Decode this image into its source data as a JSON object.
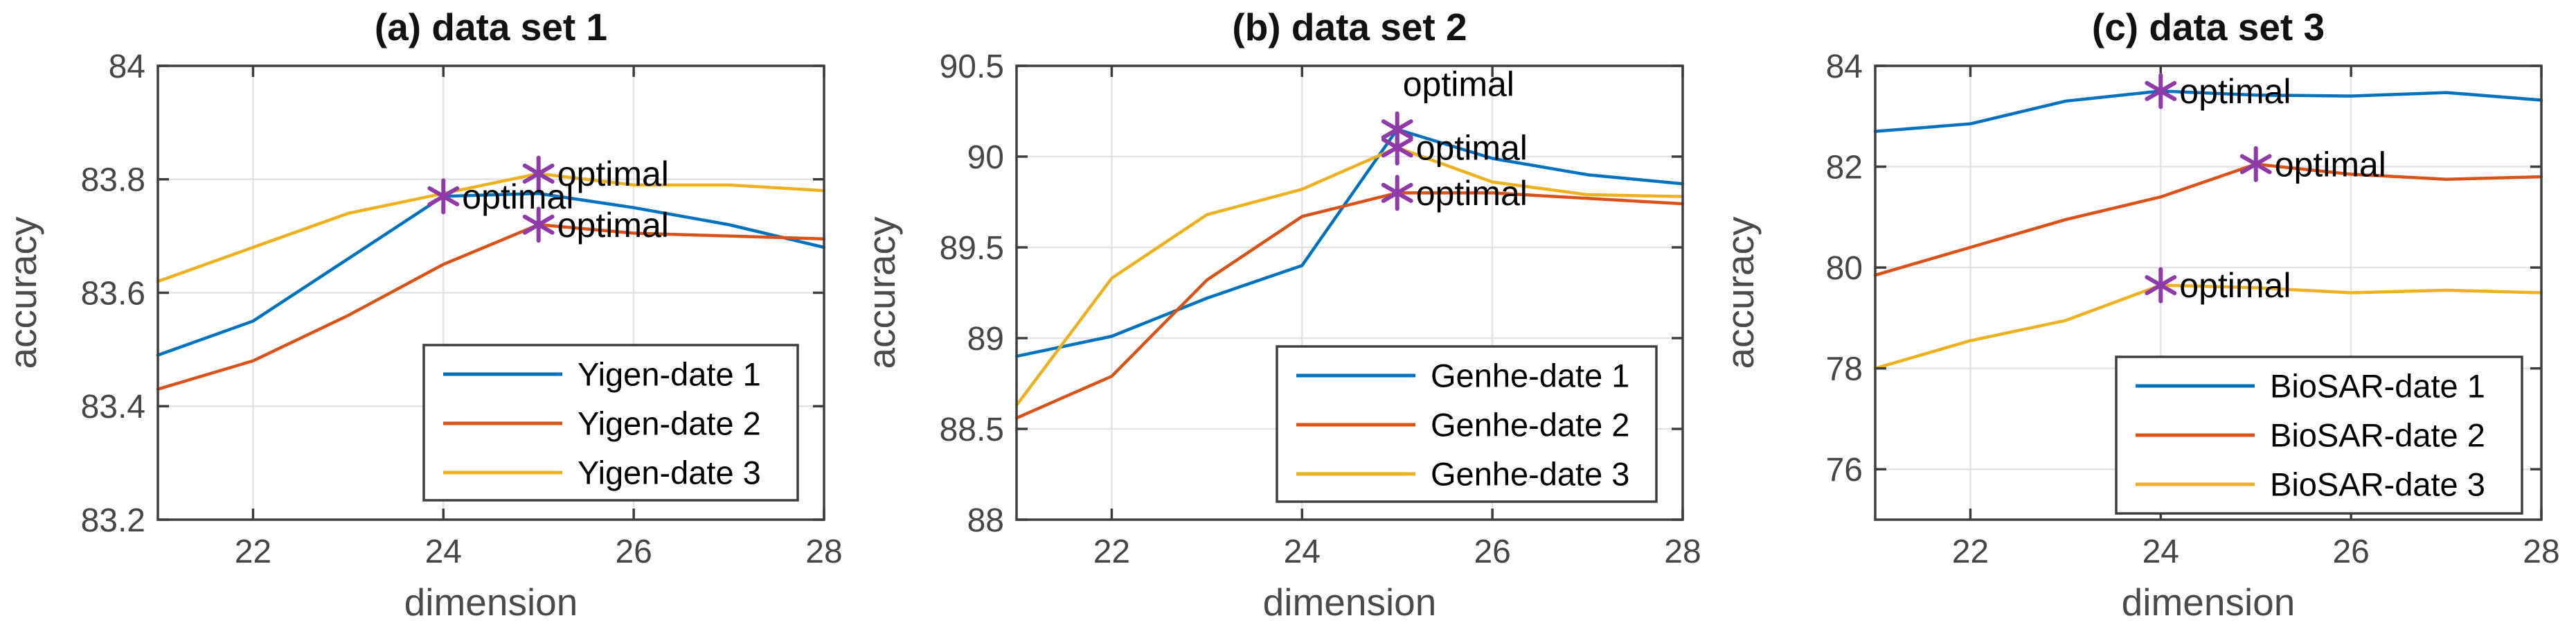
{
  "figure": {
    "background": "#ffffff",
    "optimal_marker_color": "#8E3BA8",
    "grid_color": "#e3e3e3",
    "axis_color": "#3d3d3d",
    "tick_text_color": "#464646"
  },
  "chart_data": [
    {
      "type": "line",
      "title": "(a) data set 1",
      "xlabel": "dimension",
      "ylabel": "accuracy",
      "x": [
        21,
        22,
        23,
        24,
        25,
        26,
        27,
        28
      ],
      "xlim": [
        21,
        28
      ],
      "ylim": [
        83.2,
        84
      ],
      "xticks": [
        22,
        24,
        26,
        28
      ],
      "xtick_labels": [
        "22",
        "24",
        "26",
        "28"
      ],
      "yticks": [
        83.2,
        83.4,
        83.6,
        83.8,
        84
      ],
      "ytick_labels": [
        "83.2",
        "83.4",
        "83.6",
        "83.8",
        "84"
      ],
      "grid": true,
      "legend_position": "lower right",
      "series": [
        {
          "name": "Yigen-date 1",
          "color": "#0072BD",
          "values": [
            83.49,
            83.55,
            83.66,
            83.77,
            83.775,
            83.75,
            83.72,
            83.68
          ]
        },
        {
          "name": "Yigen-date 2",
          "color": "#D95319",
          "values": [
            83.43,
            83.48,
            83.56,
            83.65,
            83.72,
            83.705,
            83.7,
            83.695
          ]
        },
        {
          "name": "Yigen-date 3",
          "color": "#EDB120",
          "values": [
            83.62,
            83.68,
            83.74,
            83.775,
            83.81,
            83.79,
            83.79,
            83.78
          ]
        }
      ],
      "optimal_points": [
        {
          "series": "Yigen-date 3",
          "x": 25,
          "y": 83.81,
          "label": "optimal",
          "label_side": "right"
        },
        {
          "series": "Yigen-date 1",
          "x": 24,
          "y": 83.77,
          "label": "optimal",
          "label_side": "right"
        },
        {
          "series": "Yigen-date 2",
          "x": 25,
          "y": 83.72,
          "label": "optimal",
          "label_side": "right"
        }
      ]
    },
    {
      "type": "line",
      "title": "(b) data set 2",
      "xlabel": "dimension",
      "ylabel": "accuracy",
      "x": [
        21,
        22,
        23,
        24,
        25,
        26,
        27,
        28
      ],
      "xlim": [
        21,
        28
      ],
      "ylim": [
        88,
        90.5
      ],
      "xticks": [
        22,
        24,
        26,
        28
      ],
      "xtick_labels": [
        "22",
        "24",
        "26",
        "28"
      ],
      "yticks": [
        88,
        88.5,
        89,
        89.5,
        90,
        90.5
      ],
      "ytick_labels": [
        "88",
        "88.5",
        "89",
        "89.5",
        "90",
        "90.5"
      ],
      "grid": true,
      "legend_position": "lower right",
      "series": [
        {
          "name": "Genhe-date 1",
          "color": "#0072BD",
          "values": [
            88.9,
            89.01,
            89.22,
            89.4,
            90.15,
            89.99,
            89.9,
            89.85
          ]
        },
        {
          "name": "Genhe-date 2",
          "color": "#D95319",
          "values": [
            88.56,
            88.79,
            89.32,
            89.67,
            89.8,
            89.8,
            89.77,
            89.74
          ]
        },
        {
          "name": "Genhe-date 3",
          "color": "#EDB120",
          "values": [
            88.63,
            89.33,
            89.68,
            89.82,
            90.05,
            89.86,
            89.79,
            89.78
          ]
        }
      ],
      "optimal_points": [
        {
          "series": "Genhe-date 1",
          "x": 25,
          "y": 90.15,
          "label": "optimal",
          "label_side": "above"
        },
        {
          "series": "Genhe-date 3",
          "x": 25,
          "y": 90.05,
          "label": "optimal",
          "label_side": "right"
        },
        {
          "series": "Genhe-date 2",
          "x": 25,
          "y": 89.8,
          "label": "optimal",
          "label_side": "right"
        }
      ]
    },
    {
      "type": "line",
      "title": "(c) data set 3",
      "xlabel": "dimension",
      "ylabel": "accuracy",
      "x": [
        21,
        22,
        23,
        24,
        25,
        26,
        27,
        28
      ],
      "xlim": [
        21,
        28
      ],
      "ylim": [
        75,
        84
      ],
      "xticks": [
        22,
        24,
        26,
        28
      ],
      "xtick_labels": [
        "22",
        "24",
        "26",
        "28"
      ],
      "yticks": [
        76,
        78,
        80,
        82,
        84
      ],
      "ytick_labels": [
        "76",
        "78",
        "80",
        "82",
        "84"
      ],
      "grid": true,
      "legend_position": "lower right",
      "series": [
        {
          "name": "BioSAR-date 1",
          "color": "#0072BD",
          "values": [
            82.7,
            82.85,
            83.3,
            83.5,
            83.42,
            83.4,
            83.47,
            83.32
          ]
        },
        {
          "name": "BioSAR-date 2",
          "color": "#D95319",
          "values": [
            79.85,
            80.4,
            80.95,
            81.4,
            82.05,
            81.85,
            81.75,
            81.8
          ]
        },
        {
          "name": "BioSAR-date 3",
          "color": "#EDB120",
          "values": [
            78.0,
            78.55,
            78.95,
            79.65,
            79.6,
            79.5,
            79.55,
            79.5
          ]
        }
      ],
      "optimal_points": [
        {
          "series": "BioSAR-date 1",
          "x": 24,
          "y": 83.5,
          "label": "optimal",
          "label_side": "right"
        },
        {
          "series": "BioSAR-date 2",
          "x": 25,
          "y": 82.05,
          "label": "optimal",
          "label_side": "right"
        },
        {
          "series": "BioSAR-date 3",
          "x": 24,
          "y": 79.65,
          "label": "optimal",
          "label_side": "right"
        }
      ]
    }
  ]
}
